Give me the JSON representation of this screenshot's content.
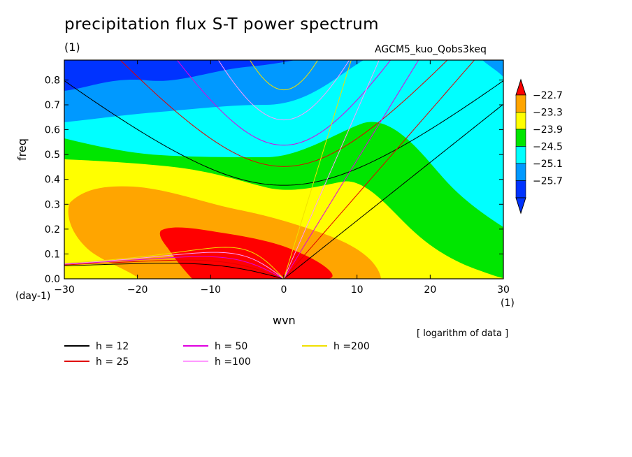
{
  "header": {
    "title": "precipitation flux S-T power spectrum",
    "unit_top": "(1)",
    "dataset": "AGCM5_kuo_Qobs3keq",
    "note": "[ logarithm of data ]"
  },
  "chart_data": {
    "type": "heatmap",
    "title": "precipitation flux S-T power spectrum",
    "xlabel": "wvn",
    "ylabel": "freq",
    "x_unit": "(1)",
    "y_unit": "(day-1)",
    "xlim": [
      -30,
      30
    ],
    "ylim": [
      0,
      0.88
    ],
    "x_ticks": [
      "-30",
      "-20",
      "-10",
      "0",
      "10",
      "20",
      "30"
    ],
    "y_ticks": [
      "0.0",
      "0.1",
      "0.2",
      "0.3",
      "0.4",
      "0.5",
      "0.6",
      "0.7",
      "0.8"
    ],
    "colorbar": {
      "labels": [
        "-22.7",
        "-23.3",
        "-23.9",
        "-24.5",
        "-25.1",
        "-25.7"
      ],
      "colors": [
        "#0033ff",
        "#0099ff",
        "#00ffff",
        "#00e600",
        "#ffff00",
        "#ffa500",
        "#ff0000"
      ]
    },
    "dispersion_curves": [
      {
        "label": "h = 12",
        "h": 12,
        "color": "#000000"
      },
      {
        "label": "h = 25",
        "h": 25,
        "color": "#e00000"
      },
      {
        "label": "h = 50",
        "h": 50,
        "color": "#e000e0"
      },
      {
        "label": "h =100",
        "h": 100,
        "color": "#ff99ff"
      },
      {
        "label": "h =200",
        "h": 200,
        "color": "#f0e000"
      }
    ]
  }
}
